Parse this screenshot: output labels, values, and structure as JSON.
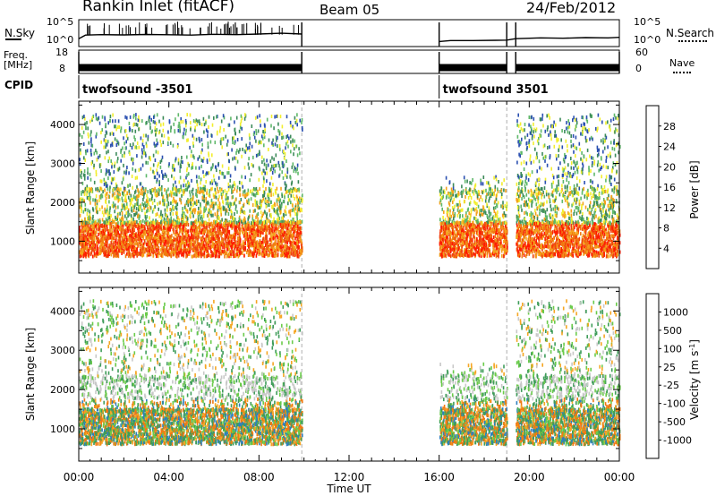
{
  "header": {
    "station": "Rankin Inlet (fitACF)",
    "beam": "Beam 05",
    "date": "24/Feb/2012"
  },
  "strip_labels": {
    "nsky": "N.Sky",
    "nsearch": "N.Search",
    "freq_line1": "Freq.",
    "freq_line2": "[MHz]",
    "nave": "Nave",
    "cpid": "CPID",
    "noise_left_ticks": [
      "10^5",
      "10^0"
    ],
    "noise_right_ticks": [
      "10^5",
      "10^0"
    ],
    "freq_left_ticks": [
      "18",
      "8"
    ],
    "nave_right_ticks": [
      "60",
      "0"
    ]
  },
  "cpid_labels": [
    "twofsound -3501",
    "twofsound 3501"
  ],
  "xaxis": {
    "label": "Time UT",
    "ticks": [
      "00:00",
      "04:00",
      "08:00",
      "12:00",
      "16:00",
      "20:00",
      "00:00"
    ]
  },
  "colors": {
    "power_scale": [
      "#0a2eff",
      "#2a4fb0",
      "#3c8a5a",
      "#5fb86a",
      "#f2ee2e",
      "#f4a21c",
      "#f07a12",
      "#f04510",
      "#ff1a00"
    ],
    "velocity_scale": [
      "#1a3fd6",
      "#2e7fbf",
      "#3f9c5a",
      "#6acb4a",
      "#c8c8c8",
      "#f5a623",
      "#f07a12",
      "#f04510",
      "#ff0000"
    ]
  },
  "chart_data": [
    {
      "type": "line",
      "title": "N.Sky / N.Search",
      "x_unit": "hours UT",
      "xlim": [
        0,
        24
      ],
      "yscale": "log",
      "ylim": [
        1,
        100000
      ],
      "series": [
        {
          "name": "N.Sky",
          "x": [
            0.0,
            0.3,
            1.0,
            2.0,
            3.0,
            4.0,
            5.0,
            6.0,
            7.0,
            8.0,
            9.0,
            9.9
          ],
          "y": [
            20,
            120,
            150,
            130,
            160,
            140,
            120,
            180,
            150,
            200,
            300,
            200
          ]
        },
        {
          "name": "N.Search",
          "x": [
            16.0,
            16.5,
            17.5,
            18.5,
            19.0,
            19.4,
            20.5,
            21.5,
            22.5,
            23.5,
            24.0
          ],
          "y": [
            5,
            8,
            8,
            9,
            10,
            20,
            30,
            25,
            35,
            30,
            40
          ]
        }
      ]
    },
    {
      "type": "line",
      "title": "Freq. / Nave",
      "x_unit": "hours UT",
      "xlim": [
        0,
        24
      ],
      "ylim": [
        8,
        18
      ],
      "series": [
        {
          "name": "Freq.",
          "x": [
            0.0,
            9.9
          ],
          "y": [
            10.5,
            10.5
          ]
        },
        {
          "name": "Freq.",
          "x": [
            16.0,
            19.0
          ],
          "y": [
            10.5,
            10.5
          ]
        },
        {
          "name": "Freq.",
          "x": [
            19.4,
            24.0
          ],
          "y": [
            10.5,
            10.5
          ]
        }
      ]
    },
    {
      "type": "heatmap",
      "title": "Power",
      "xlabel": "",
      "ylabel": "Slant Range [km]",
      "colorbar_label": "Power [dB]",
      "colorbar_ticks": [
        28,
        24,
        20,
        16,
        12,
        8,
        4
      ],
      "yticks": [
        1000,
        2000,
        3000,
        4000
      ],
      "ylim": [
        180,
        4600
      ],
      "xlim": [
        0,
        24
      ],
      "data_intervals_hours": [
        [
          0,
          9.9
        ],
        [
          16.0,
          19.0
        ],
        [
          19.4,
          24.0
        ]
      ]
    },
    {
      "type": "heatmap",
      "title": "Velocity",
      "xlabel": "Time UT",
      "ylabel": "Slant Range [km]",
      "colorbar_label": "Velocity [m s^-1]",
      "colorbar_ticks": [
        1000,
        500,
        100,
        25,
        -25,
        -100,
        -500,
        -1000
      ],
      "yticks": [
        1000,
        2000,
        3000,
        4000
      ],
      "ylim": [
        180,
        4600
      ],
      "xlim": [
        0,
        24
      ],
      "data_intervals_hours": [
        [
          0,
          9.9
        ],
        [
          16.0,
          19.0
        ],
        [
          19.4,
          24.0
        ]
      ]
    }
  ]
}
